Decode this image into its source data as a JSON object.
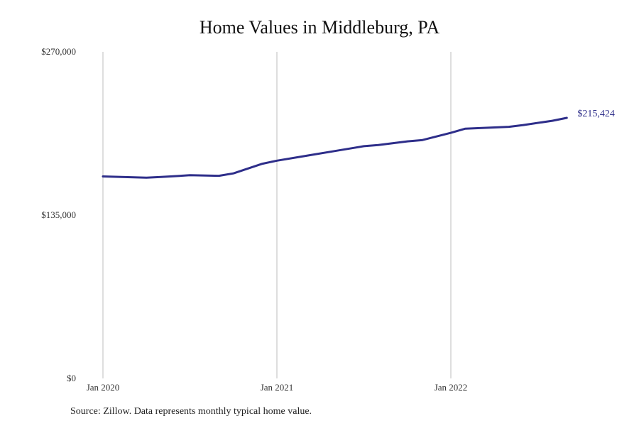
{
  "chart_data": {
    "type": "line",
    "title": "Home Values in Middleburg, PA",
    "xlabel": "",
    "ylabel": "",
    "x_range": [
      "2020-01",
      "2022-12"
    ],
    "ylim": [
      0,
      270000
    ],
    "x_ticks": [
      {
        "value": "2020-01",
        "label": "Jan 2020"
      },
      {
        "value": "2021-01",
        "label": "Jan 2021"
      },
      {
        "value": "2022-01",
        "label": "Jan 2022"
      }
    ],
    "y_ticks": [
      {
        "value": 0,
        "label": "$0"
      },
      {
        "value": 135000,
        "label": "$135,000"
      },
      {
        "value": 270000,
        "label": "$270,000"
      }
    ],
    "grid": {
      "vertical": true,
      "horizontal": false
    },
    "series": [
      {
        "color": "#2e2e8a",
        "points": [
          {
            "x": "2020-01",
            "y": 167000
          },
          {
            "x": "2020-04",
            "y": 166000
          },
          {
            "x": "2020-05",
            "y": 166500
          },
          {
            "x": "2020-07",
            "y": 168000
          },
          {
            "x": "2020-09",
            "y": 167500
          },
          {
            "x": "2020-10",
            "y": 169500
          },
          {
            "x": "2020-12",
            "y": 177500
          },
          {
            "x": "2021-01",
            "y": 180000
          },
          {
            "x": "2021-03",
            "y": 184000
          },
          {
            "x": "2021-05",
            "y": 188000
          },
          {
            "x": "2021-06",
            "y": 190000
          },
          {
            "x": "2021-07",
            "y": 192000
          },
          {
            "x": "2021-08",
            "y": 193000
          },
          {
            "x": "2021-10",
            "y": 196000
          },
          {
            "x": "2021-11",
            "y": 197000
          },
          {
            "x": "2022-01",
            "y": 203000
          },
          {
            "x": "2022-02",
            "y": 206500
          },
          {
            "x": "2022-05",
            "y": 208000
          },
          {
            "x": "2022-06",
            "y": 209500
          },
          {
            "x": "2022-08",
            "y": 213000
          },
          {
            "x": "2022-09",
            "y": 215424
          }
        ],
        "end_label": "$215,424"
      }
    ],
    "source": "Source: Zillow. Data represents monthly typical home value."
  }
}
